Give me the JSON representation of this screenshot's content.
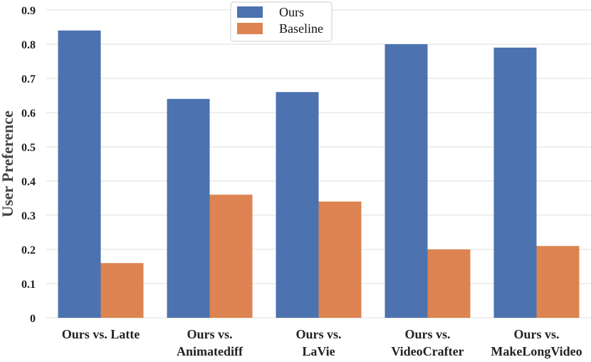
{
  "chart_data": {
    "type": "bar",
    "title": "",
    "xlabel": "",
    "ylabel": "User Preference",
    "ylim": [
      0,
      0.9
    ],
    "yticks": [
      "0",
      "0.1",
      "0.2",
      "0.3",
      "0.4",
      "0.5",
      "0.6",
      "0.7",
      "0.8",
      "0.9"
    ],
    "grid": "horizontal",
    "legend_position": "top-center",
    "categories": [
      [
        "Ours vs.      Latte"
      ],
      [
        "Ours vs.",
        "Animatediff"
      ],
      [
        "Ours vs.",
        "LaVie"
      ],
      [
        "Ours vs.",
        "VideoCrafter"
      ],
      [
        "Ours vs.",
        "MakeLongVideo"
      ]
    ],
    "series": [
      {
        "name": "Ours",
        "color": "#4c72b0",
        "values": [
          0.84,
          0.64,
          0.66,
          0.8,
          0.79
        ]
      },
      {
        "name": "Baseline",
        "color": "#dd8452",
        "values": [
          0.16,
          0.36,
          0.34,
          0.2,
          0.21
        ]
      }
    ]
  }
}
